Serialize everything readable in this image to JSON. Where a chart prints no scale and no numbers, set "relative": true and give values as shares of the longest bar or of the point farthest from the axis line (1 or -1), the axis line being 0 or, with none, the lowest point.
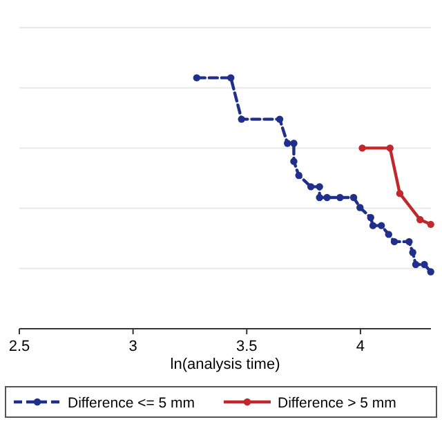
{
  "chart_data": {
    "type": "line",
    "relative": true,
    "xlabel": "ln(analysis time)",
    "xlim": [
      2.5,
      4.31
    ],
    "xticks": [
      2.5,
      3,
      3.5,
      4
    ],
    "grid": "y",
    "legend": "bottom",
    "marker": "circle",
    "series": [
      {
        "name": "Difference <= 5 mm",
        "color": "#1f2f8a",
        "line_style": "dashed",
        "x": [
          3.28,
          3.43,
          3.477,
          3.645,
          3.679,
          3.707,
          3.707,
          3.729,
          3.782,
          3.82,
          3.82,
          3.853,
          3.91,
          3.97,
          3.998,
          4.045,
          4.055,
          4.092,
          4.124,
          4.149,
          4.214,
          4.23,
          4.243,
          4.281,
          4.309
        ],
        "values": [
          1,
          1,
          0.835,
          0.835,
          0.739,
          0.739,
          0.667,
          0.611,
          0.566,
          0.566,
          0.523,
          0.523,
          0.523,
          0.523,
          0.483,
          0.443,
          0.411,
          0.411,
          0.376,
          0.347,
          0.347,
          0.304,
          0.256,
          0.256,
          0.227
        ]
      },
      {
        "name": "Difference > 5 mm",
        "color": "#c0282d",
        "line_style": "solid",
        "x": [
          4.008,
          4.13,
          4.173,
          4.262,
          4.309
        ],
        "values": [
          0.72,
          0.72,
          0.539,
          0.435,
          0.416
        ]
      }
    ]
  }
}
